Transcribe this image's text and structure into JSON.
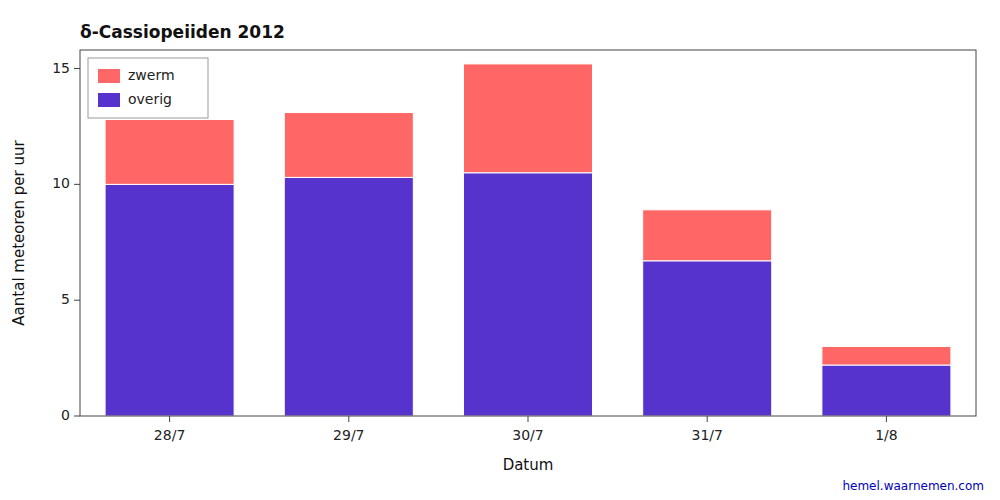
{
  "chart_data": {
    "type": "bar",
    "title": "δ-Cassiopeiiden 2012",
    "xlabel": "Datum",
    "ylabel": "Aantal meteoren per uur",
    "categories": [
      "28/7",
      "29/7",
      "30/7",
      "31/7",
      "1/8"
    ],
    "series": [
      {
        "name": "overig",
        "color": "#5533CC",
        "values": [
          10.0,
          10.3,
          10.5,
          6.7,
          2.2
        ]
      },
      {
        "name": "zwerm",
        "color": "#FF6666",
        "values": [
          2.8,
          2.8,
          4.7,
          2.2,
          0.8
        ]
      }
    ],
    "stacked": true,
    "ylim": [
      0,
      15.8
    ],
    "yticks": [
      0,
      5,
      10,
      15
    ],
    "legend": "upper left",
    "annotations": [
      {
        "text": "hemel.waarnemen.com",
        "color": "#0000BB"
      }
    ]
  }
}
